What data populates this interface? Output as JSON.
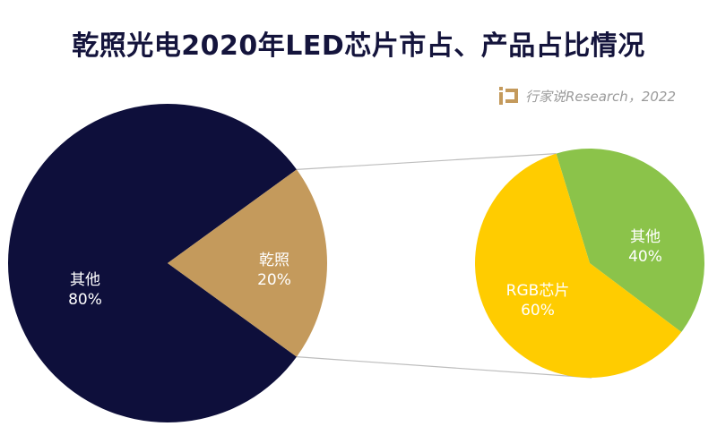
{
  "chart_data": {
    "type": "pie-of-pie",
    "title": "乾照光电2020年LED芯片市占、产品占比情况",
    "source": "行家说Research，2022",
    "main_pie": {
      "slices": [
        {
          "label": "其他",
          "value": 80,
          "value_label": "80%",
          "color": "#0e0f3b"
        },
        {
          "label": "乾照",
          "value": 20,
          "value_label": "20%",
          "color": "#c49a5c"
        }
      ]
    },
    "secondary_pie": {
      "slices": [
        {
          "label": "其他",
          "value": 40,
          "value_label": "40%",
          "color": "#8bc34a"
        },
        {
          "label": "RGB芯片",
          "value": 60,
          "value_label": "60%",
          "color": "#ffcc00"
        }
      ]
    }
  }
}
